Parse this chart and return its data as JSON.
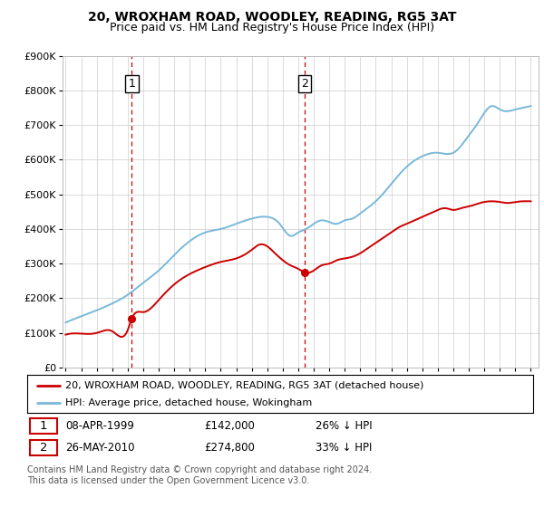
{
  "title": "20, WROXHAM ROAD, WOODLEY, READING, RG5 3AT",
  "subtitle": "Price paid vs. HM Land Registry's House Price Index (HPI)",
  "ylim": [
    0,
    900000
  ],
  "yticks": [
    0,
    100000,
    200000,
    300000,
    400000,
    500000,
    600000,
    700000,
    800000,
    900000
  ],
  "ytick_labels": [
    "£0",
    "£100K",
    "£200K",
    "£300K",
    "£400K",
    "£500K",
    "£600K",
    "£700K",
    "£800K",
    "£900K"
  ],
  "background_color": "#ffffff",
  "grid_color": "#cccccc",
  "hpi_line_color": "#7ab8d9",
  "price_line_color": "#cc0000",
  "dashed_vline_color": "#cc0000",
  "sale1_date_num": 1999.27,
  "sale1_price": 142000,
  "sale2_date_num": 2010.4,
  "sale2_price": 274800,
  "legend_price_label": "20, WROXHAM ROAD, WOODLEY, READING, RG5 3AT (detached house)",
  "legend_hpi_label": "HPI: Average price, detached house, Wokingham",
  "footer": "Contains HM Land Registry data © Crown copyright and database right 2024.\nThis data is licensed under the Open Government Licence v3.0.",
  "title_fontsize": 10,
  "subtitle_fontsize": 9,
  "axis_fontsize": 8,
  "legend_fontsize": 8,
  "annotation_fontsize": 8.5,
  "xlim_left": 1994.8,
  "xlim_right": 2025.5
}
